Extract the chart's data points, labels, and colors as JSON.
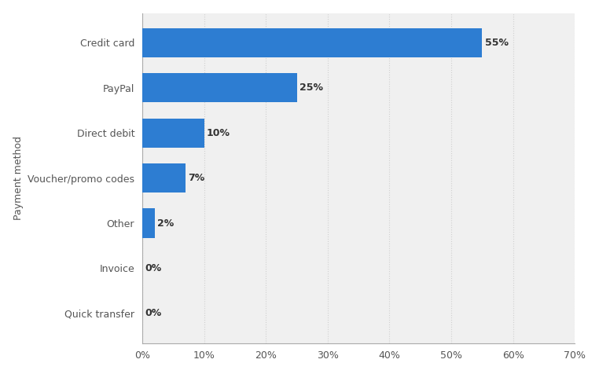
{
  "categories": [
    "Quick transfer",
    "Invoice",
    "Other",
    "Voucher/promo codes",
    "Direct debit",
    "PayPal",
    "Credit card"
  ],
  "values": [
    0,
    0,
    2,
    7,
    10,
    25,
    55
  ],
  "labels": [
    "0%",
    "0%",
    "2%",
    "7%",
    "10%",
    "25%",
    "55%"
  ],
  "bar_color": "#2d7dd2",
  "fig_background": "#ffffff",
  "plot_background": "#f0f0f0",
  "ylabel": "Payment method",
  "xlim": [
    0,
    70
  ],
  "xticks": [
    0,
    10,
    20,
    30,
    40,
    50,
    60,
    70
  ],
  "xtick_labels": [
    "0%",
    "10%",
    "20%",
    "30%",
    "40%",
    "50%",
    "60%",
    "70%"
  ],
  "bar_height": 0.65,
  "label_fontsize": 9,
  "tick_fontsize": 9,
  "ylabel_fontsize": 9,
  "grid_color": "#d0d0d0",
  "grid_linestyle": ":",
  "spine_color": "#aaaaaa"
}
